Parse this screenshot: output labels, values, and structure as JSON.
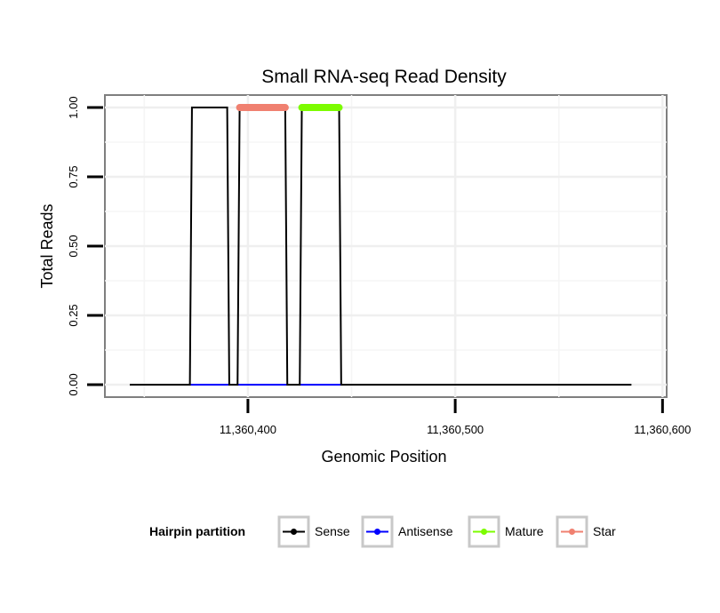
{
  "chart_data": {
    "type": "line",
    "title": "Small RNA-seq Read Density",
    "xlabel": "Genomic Position",
    "ylabel": "Total Reads",
    "xlim": [
      11360331,
      11360602
    ],
    "ylim": [
      -0.045,
      1.045
    ],
    "x_ticks": [
      11360400,
      11360500,
      11360600
    ],
    "x_tick_labels": [
      "11,360,400",
      "11,360,500",
      "11,360,600"
    ],
    "y_ticks": [
      0,
      0.25,
      0.5,
      0.75,
      1.0
    ],
    "y_tick_labels": [
      "0.00",
      "0.25",
      "0.50",
      "0.75",
      "1.00"
    ],
    "grid": true,
    "legend_position": "bottom",
    "legend_title": "Hairpin partition",
    "series": [
      {
        "name": "Sense",
        "color": "#000000",
        "style": "line",
        "x": [
          11360343,
          11360372,
          11360373,
          11360390,
          11360391,
          11360395,
          11360396,
          11360418,
          11360419,
          11360425,
          11360426,
          11360444,
          11360445,
          11360585
        ],
        "y": [
          0,
          0,
          1,
          1,
          0,
          0,
          1,
          1,
          0,
          0,
          1,
          1,
          0,
          0
        ]
      },
      {
        "name": "Antisense",
        "color": "#0000ff",
        "style": "line",
        "x": [
          11360372,
          11360445
        ],
        "y": [
          0,
          0
        ]
      },
      {
        "name": "Mature",
        "color": "#7cfc00",
        "style": "band",
        "x": [
          11360426,
          11360444
        ],
        "y": [
          1,
          1
        ]
      },
      {
        "name": "Star",
        "color": "#f08070",
        "style": "band",
        "x": [
          11360396,
          11360418
        ],
        "y": [
          1,
          1
        ]
      }
    ]
  }
}
